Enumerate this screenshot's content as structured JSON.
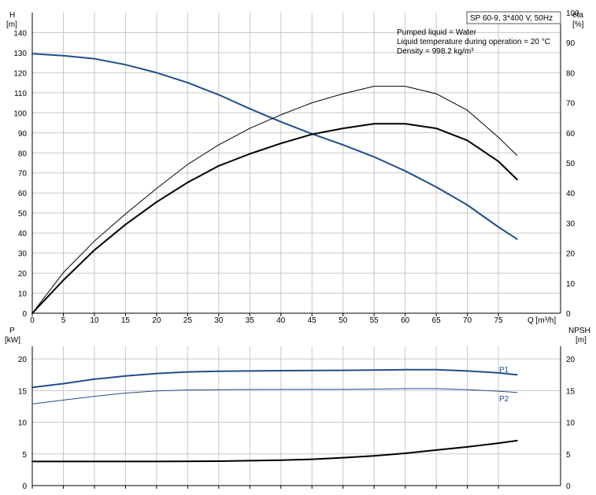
{
  "colors": {
    "head": "#1f4e8c",
    "power": "#1f4e8c",
    "eta": "#000000",
    "npsh": "#000000",
    "grid": "#c8c8c8"
  },
  "info": {
    "pump": "SP 60-9, 3*400 V, 50Hz",
    "liquid": "Pumped liquid = Water",
    "temperature": "Liquid temperature during operation = 20 °C",
    "density": "Density = 998.2 kg/m³"
  },
  "top_chart": {
    "y_left_label_line1": "H",
    "y_left_label_line2": "[m]",
    "y_right_label_line1": "eta",
    "y_right_label_line2": "[%]",
    "x_label": "Q [m³/h]",
    "x_ticks": [
      "0",
      "5",
      "10",
      "15",
      "20",
      "25",
      "30",
      "35",
      "40",
      "45",
      "50",
      "55",
      "60",
      "65",
      "70",
      "75"
    ],
    "y_left_ticks": [
      "0",
      "10",
      "20",
      "30",
      "40",
      "50",
      "60",
      "70",
      "80",
      "90",
      "100",
      "110",
      "120",
      "130",
      "140"
    ],
    "y_right_ticks": [
      "0",
      "10",
      "20",
      "30",
      "40",
      "50",
      "60",
      "70",
      "80",
      "90",
      "100"
    ]
  },
  "bottom_chart": {
    "y_left_label_line1": "P",
    "y_left_label_line2": "[kW]",
    "y_right_label_line1": "NPSH",
    "y_right_label_line2": "[m]",
    "y_left_ticks": [
      "0",
      "5",
      "10",
      "15",
      "20"
    ],
    "y_right_ticks": [
      "0",
      "5",
      "10",
      "15",
      "20"
    ],
    "p1_label": "P1",
    "p2_label": "P2"
  },
  "chart_data": [
    {
      "type": "line",
      "xlabel": "Q [m³/h]",
      "ylabel": "H [m]",
      "y2label": "eta [%]",
      "xlim": [
        0,
        85
      ],
      "ylim": [
        0,
        150
      ],
      "y2lim": [
        0,
        100
      ],
      "series": [
        {
          "axis": "left",
          "style": "head",
          "x": [
            0,
            5,
            10,
            15,
            20,
            25,
            30,
            35,
            40,
            45,
            50,
            55,
            60,
            65,
            70,
            75,
            78
          ],
          "y": [
            129.5,
            128.5,
            127,
            124,
            120,
            115,
            109,
            102,
            95.5,
            89.5,
            84,
            78,
            71,
            63,
            54,
            43,
            37
          ]
        },
        {
          "axis": "right",
          "style": "eta-thick",
          "x": [
            0,
            5,
            10,
            15,
            20,
            25,
            30,
            35,
            40,
            45,
            50,
            55,
            60,
            65,
            70,
            75,
            78
          ],
          "y": [
            0,
            11,
            21,
            29.5,
            37,
            43.5,
            49,
            53,
            56.5,
            59.5,
            61.5,
            63,
            63,
            61.5,
            57.5,
            50.5,
            44.5
          ]
        },
        {
          "axis": "right",
          "style": "eta-thin",
          "x": [
            0,
            5,
            10,
            15,
            20,
            25,
            30,
            35,
            40,
            45,
            50,
            55,
            60,
            65,
            70,
            75,
            78
          ],
          "y": [
            0,
            13.5,
            24,
            33,
            41.5,
            49.5,
            56,
            61.5,
            66,
            70,
            73,
            75.5,
            75.5,
            73,
            67.5,
            58.5,
            52.5
          ]
        }
      ]
    },
    {
      "type": "line",
      "xlabel": "Q [m³/h]",
      "ylabel": "P [kW]",
      "y2label": "NPSH [m]",
      "xlim": [
        0,
        85
      ],
      "ylim": [
        0,
        22
      ],
      "y2lim": [
        0,
        22
      ],
      "series": [
        {
          "name": "P1",
          "axis": "left",
          "style": "power-thick",
          "x": [
            0,
            5,
            10,
            15,
            20,
            25,
            30,
            40,
            50,
            60,
            65,
            70,
            75,
            78
          ],
          "y": [
            15.5,
            16.1,
            16.8,
            17.3,
            17.7,
            17.95,
            18.05,
            18.15,
            18.2,
            18.3,
            18.3,
            18.1,
            17.8,
            17.5
          ]
        },
        {
          "name": "P2",
          "axis": "left",
          "style": "power-thin",
          "x": [
            0,
            5,
            10,
            15,
            20,
            25,
            30,
            40,
            50,
            60,
            65,
            70,
            75,
            78
          ],
          "y": [
            12.9,
            13.5,
            14.1,
            14.6,
            14.95,
            15.1,
            15.15,
            15.2,
            15.2,
            15.3,
            15.3,
            15.15,
            14.9,
            14.7
          ]
        },
        {
          "axis": "right",
          "style": "npsh",
          "x": [
            0,
            10,
            20,
            30,
            40,
            45,
            50,
            55,
            60,
            65,
            70,
            75,
            78
          ],
          "y": [
            3.8,
            3.8,
            3.8,
            3.85,
            4.0,
            4.15,
            4.4,
            4.7,
            5.1,
            5.6,
            6.1,
            6.7,
            7.1
          ]
        }
      ]
    }
  ]
}
